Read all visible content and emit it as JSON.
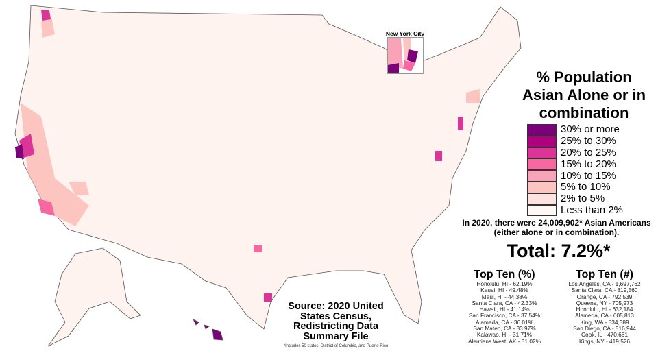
{
  "title": "% Population Asian Alone or in combination",
  "legend": [
    {
      "label": "30% or more",
      "color": "#7a0177"
    },
    {
      "label": "25% to 30%",
      "color": "#ae017e"
    },
    {
      "label": "20% to 25%",
      "color": "#dd3497"
    },
    {
      "label": "15% to 20%",
      "color": "#f768a1"
    },
    {
      "label": "10% to 15%",
      "color": "#f9a3b8"
    },
    {
      "label": "5% to 10%",
      "color": "#fcc5c0"
    },
    {
      "label": "2% to 5%",
      "color": "#fde3df"
    },
    {
      "label": "Less than 2%",
      "color": "#fff7f3"
    }
  ],
  "summary": "In 2020, there were 24,009,902* Asian Americans (either alone or in combination).",
  "total": "Total: 7.2%*",
  "top_ten_pct": {
    "heading": "Top Ten (%)",
    "items": [
      "Honolulu, HI - 62.19%",
      "Kauai, HI - 49.48%",
      "Maui, HI - 44.38%",
      "Santa Clara, CA - 42.33%",
      "Hawaii, HI - 41.14%",
      "San Francisco, CA - 37.54%",
      "Alameda, CA - 36.01%",
      "San Mateo, CA - 33.97%",
      "Kalawao, HI - 31.71%",
      "Aleutians West, AK - 31.02%"
    ]
  },
  "top_ten_num": {
    "heading": "Top Ten (#)",
    "items": [
      "Los Angeles, CA - 1,697,762",
      "Santa Clara, CA - 819,560",
      "Orange, CA - 792,539",
      "Queens, NY - 705,973",
      "Honolulu, HI - 632,184",
      "Alameda, CA - 605,813",
      "King, WA - 534,389",
      "San Diego, CA - 516,944",
      "Cook, IL - 470,661",
      "Kings, NY - 419,526"
    ]
  },
  "source": "Source: 2020 United States Census, Redistricting Data Summary File",
  "footnote": "*Includes 50 states, District of Columbia, and Puerto Rico",
  "inset_label": "New York City"
}
